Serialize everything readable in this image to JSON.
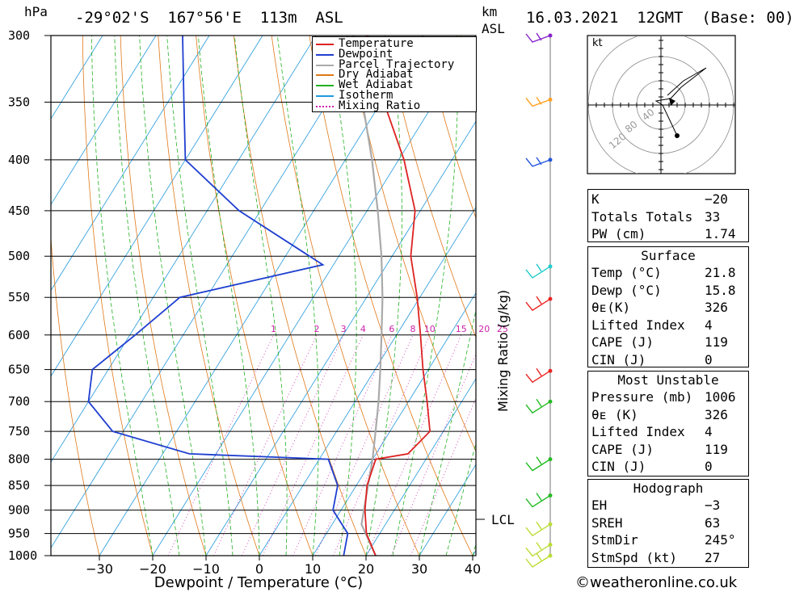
{
  "header": {
    "unit_left": "hPa",
    "location": "-29°02'S  167°56'E  113m  ASL",
    "unit_right_1": "km",
    "unit_right_2": "ASL",
    "datetime": "16.03.2021  12GMT  (Base: 00)"
  },
  "chart_data": {
    "type": "skew-t",
    "xlabel": "Dewpoint / Temperature (°C)",
    "ylabel_left": "hPa",
    "ylabel_right": "Mixing Ratio (g/kg)",
    "x_ticks": [
      -30,
      -20,
      -10,
      0,
      10,
      20,
      30,
      40
    ],
    "x_tick_labels": [
      "−30",
      "−20",
      "−10",
      "0",
      "10",
      "20",
      "30",
      "40"
    ],
    "xlim": [
      -40,
      40
    ],
    "pressure_levels": [
      300,
      350,
      400,
      450,
      500,
      550,
      600,
      650,
      700,
      750,
      800,
      850,
      900,
      950,
      1000
    ],
    "ylim": [
      1000,
      300
    ],
    "legend": [
      "Temperature",
      "Dewpoint",
      "Parcel Trajectory",
      "Dry Adiabat",
      "Wet Adiabat",
      "Isotherm",
      "Mixing Ratio"
    ],
    "legend_colors": [
      "#dd2222",
      "#1f3fd0",
      "#aaaaaa",
      "#e07818",
      "#22b022",
      "#2299dd",
      "#cc22aa"
    ],
    "mixing_ratio_labels": [
      "1",
      "2",
      "3",
      "4",
      "6",
      "8",
      "10",
      "15",
      "20",
      "25"
    ],
    "temperature": [
      {
        "p": 1000,
        "t": 21.8
      },
      {
        "p": 950,
        "t": 17.5
      },
      {
        "p": 900,
        "t": 14.5
      },
      {
        "p": 850,
        "t": 12.0
      },
      {
        "p": 800,
        "t": 10.6
      },
      {
        "p": 790,
        "t": 16.0
      },
      {
        "p": 750,
        "t": 17.5
      },
      {
        "p": 700,
        "t": 13.5
      },
      {
        "p": 650,
        "t": 9.0
      },
      {
        "p": 600,
        "t": 4.5
      },
      {
        "p": 550,
        "t": -0.5
      },
      {
        "p": 500,
        "t": -6.5
      },
      {
        "p": 450,
        "t": -11.0
      },
      {
        "p": 400,
        "t": -19.0
      },
      {
        "p": 350,
        "t": -29.5
      },
      {
        "p": 300,
        "t": -40.5
      }
    ],
    "dewpoint": [
      {
        "p": 1000,
        "t": 15.8
      },
      {
        "p": 950,
        "t": 14.0
      },
      {
        "p": 900,
        "t": 8.5
      },
      {
        "p": 850,
        "t": 6.5
      },
      {
        "p": 800,
        "t": 1.7
      },
      {
        "p": 790,
        "t": -25.0
      },
      {
        "p": 750,
        "t": -42.0
      },
      {
        "p": 700,
        "t": -50.0
      },
      {
        "p": 650,
        "t": -53.0
      },
      {
        "p": 600,
        "t": -49.0
      },
      {
        "p": 550,
        "t": -45.0
      },
      {
        "p": 510,
        "t": -22.0
      },
      {
        "p": 450,
        "t": -44.0
      },
      {
        "p": 400,
        "t": -60.0
      },
      {
        "p": 350,
        "t": -67.0
      },
      {
        "p": 300,
        "t": -75.0
      }
    ],
    "parcel": [
      {
        "p": 1000,
        "t": 21.8
      },
      {
        "p": 930,
        "t": 15.5
      },
      {
        "p": 850,
        "t": 12.2
      },
      {
        "p": 800,
        "t": 10.0
      },
      {
        "p": 750,
        "t": 7.3
      },
      {
        "p": 700,
        "t": 4.4
      },
      {
        "p": 650,
        "t": 1.0
      },
      {
        "p": 600,
        "t": -2.8
      },
      {
        "p": 550,
        "t": -7.0
      },
      {
        "p": 500,
        "t": -12.0
      },
      {
        "p": 450,
        "t": -18.0
      },
      {
        "p": 400,
        "t": -25.0
      },
      {
        "p": 350,
        "t": -33.5
      },
      {
        "p": 300,
        "t": -43.0
      }
    ],
    "lcl_label": "LCL",
    "lcl_pressure": 925,
    "hodograph_unit": "kt",
    "hodograph_rings": [
      "40",
      "80",
      "120"
    ]
  },
  "stats": {
    "general": [
      {
        "label": "K",
        "value": "−20"
      },
      {
        "label": "Totals Totals",
        "value": "33"
      },
      {
        "label": "PW (cm)",
        "value": "1.74"
      }
    ],
    "surface_title": "Surface",
    "surface": [
      {
        "label": "Temp (°C)",
        "value": "21.8"
      },
      {
        "label": "Dewp (°C)",
        "value": "15.8"
      },
      {
        "label": "θᴇ(K)",
        "value": "326"
      },
      {
        "label": "Lifted Index",
        "value": "4"
      },
      {
        "label": "CAPE (J)",
        "value": "119"
      },
      {
        "label": "CIN (J)",
        "value": "0"
      }
    ],
    "unstable_title": "Most Unstable",
    "unstable": [
      {
        "label": "Pressure (mb)",
        "value": "1006"
      },
      {
        "label": "θᴇ (K)",
        "value": "326"
      },
      {
        "label": "Lifted Index",
        "value": "4"
      },
      {
        "label": "CAPE (J)",
        "value": "119"
      },
      {
        "label": "CIN (J)",
        "value": "0"
      }
    ],
    "hodo_title": "Hodograph",
    "hodograph": [
      {
        "label": "EH",
        "value": "−3"
      },
      {
        "label": "SREH",
        "value": "63"
      },
      {
        "label": "StmDir",
        "value": "245°"
      },
      {
        "label": "StmSpd (kt)",
        "value": "27"
      }
    ]
  },
  "footer": {
    "credit": "©weatheronline.co.uk"
  }
}
